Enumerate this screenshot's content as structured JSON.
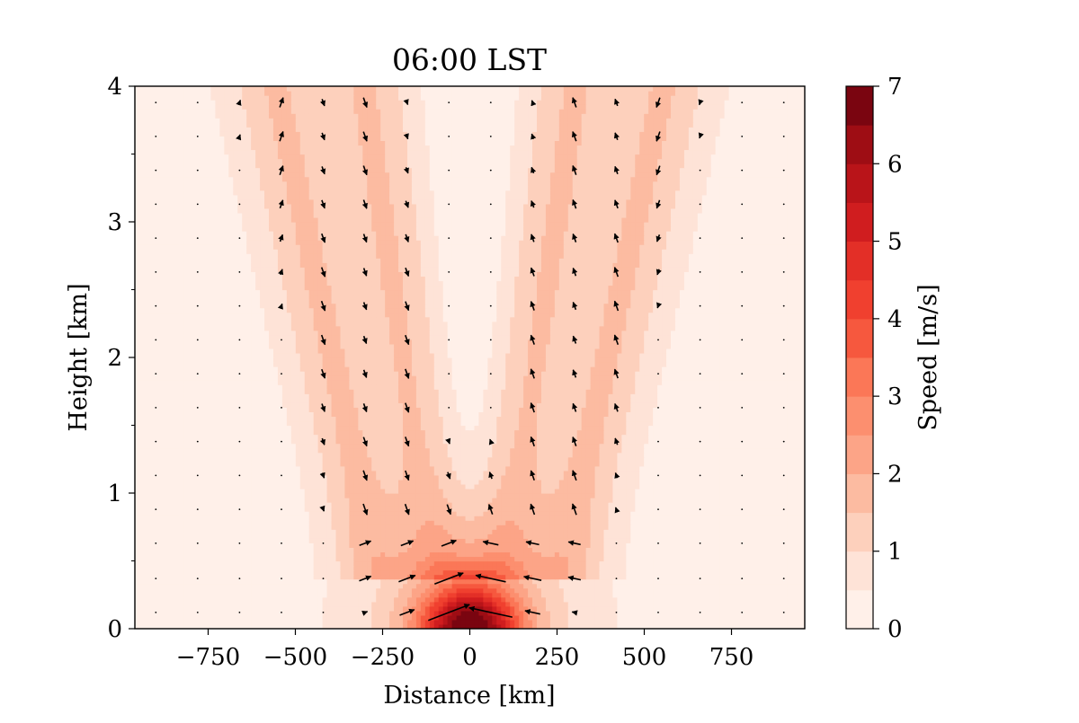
{
  "chart_data": {
    "type": "contour-quiver",
    "title": "06:00 LST",
    "xlabel": "Distance [km]",
    "ylabel": "Height [km]",
    "xlim": [
      -960,
      960
    ],
    "ylim": [
      0,
      4
    ],
    "x_ticks": [
      -750,
      -500,
      -250,
      0,
      250,
      500,
      750
    ],
    "x_tick_labels": [
      "−750",
      "−500",
      "−250",
      "0",
      "250",
      "500",
      "750"
    ],
    "y_ticks": [
      0,
      1,
      2,
      3,
      4
    ],
    "y_tick_labels": [
      "0",
      "1",
      "2",
      "3",
      "4"
    ],
    "colorbar": {
      "label": "Speed  [m/s]",
      "colormap": "Reds",
      "levels": [
        0,
        0.5,
        1,
        1.5,
        2,
        2.5,
        3,
        3.5,
        4,
        4.5,
        5,
        5.5,
        6,
        6.5,
        7
      ],
      "ticks": [
        0,
        1,
        2,
        3,
        4,
        5,
        6,
        7
      ],
      "tick_labels": [
        "0",
        "1",
        "2",
        "3",
        "4",
        "5",
        "6",
        "7"
      ],
      "colors": [
        "#fff0e9",
        "#fee3d7",
        "#fdd0bc",
        "#fcbba1",
        "#fca487",
        "#fc8f6f",
        "#fb7757",
        "#f6583e",
        "#f0402f",
        "#e32f27",
        "#d01d1f",
        "#b91419",
        "#9e0d14",
        "#7a0510"
      ]
    },
    "speed_max_location": {
      "x": 0,
      "z": 0.05,
      "speed": 5.5
    },
    "quiver_grid": {
      "x": [
        -900,
        -780,
        -660,
        -540,
        -420,
        -300,
        -180,
        -60,
        60,
        180,
        300,
        420,
        540,
        660,
        780,
        900
      ],
      "z": [
        0.12,
        0.37,
        0.63,
        0.88,
        1.13,
        1.38,
        1.63,
        1.88,
        2.13,
        2.38,
        2.63,
        2.88,
        3.13,
        3.38,
        3.63,
        3.88
      ]
    },
    "bands": [
      {
        "side": "left",
        "x_center_at_top": -560,
        "x_center_at_bottom": -240,
        "peak_speed": 1.2
      },
      {
        "side": "left-inner",
        "x_center_at_top": -300,
        "x_center_at_bottom": -60,
        "peak_speed": 1.2
      },
      {
        "side": "right-inner",
        "x_center_at_top": 300,
        "x_center_at_bottom": 60,
        "peak_speed": 1.2
      },
      {
        "side": "right",
        "x_center_at_top": 560,
        "x_center_at_bottom": 240,
        "peak_speed": 1.2
      }
    ]
  }
}
